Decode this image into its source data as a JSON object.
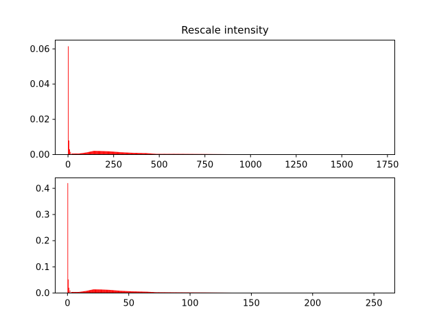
{
  "chart_data": [
    {
      "type": "bar",
      "title": "Rescale intensity",
      "xlabel": "",
      "ylabel": "",
      "xlim": [
        -70,
        1790
      ],
      "ylim": [
        0,
        0.065
      ],
      "xticks": [
        0,
        250,
        500,
        750,
        1000,
        1250,
        1500,
        1750
      ],
      "yticks": [
        0.0,
        0.02,
        0.04,
        0.06
      ],
      "ytick_labels": [
        "0.00",
        "0.02",
        "0.04",
        "0.06"
      ],
      "bar_color": "#ff0000",
      "bin_width": 3.5,
      "spikes": [
        {
          "x": 0,
          "value": 0.0615
        },
        {
          "x": 3.5,
          "value": 0.008
        },
        {
          "x": 7,
          "value": 0.003
        },
        {
          "x": 12,
          "value": 0.0015
        }
      ],
      "profile": [
        {
          "x": 20,
          "value": 0.0006
        },
        {
          "x": 60,
          "value": 0.0006
        },
        {
          "x": 100,
          "value": 0.0012
        },
        {
          "x": 140,
          "value": 0.0021
        },
        {
          "x": 180,
          "value": 0.002
        },
        {
          "x": 230,
          "value": 0.0018
        },
        {
          "x": 290,
          "value": 0.0013
        },
        {
          "x": 350,
          "value": 0.001
        },
        {
          "x": 430,
          "value": 0.0008
        },
        {
          "x": 480,
          "value": 0.0004
        },
        {
          "x": 600,
          "value": 0.0004
        },
        {
          "x": 750,
          "value": 0.0003
        },
        {
          "x": 900,
          "value": 0.0002
        },
        {
          "x": 940,
          "value": 0.0002
        },
        {
          "x": 950,
          "value": 0.0
        }
      ]
    },
    {
      "type": "bar",
      "title": "",
      "xlabel": "",
      "ylabel": "",
      "xlim": [
        -10,
        267
      ],
      "ylim": [
        0,
        0.44
      ],
      "xticks": [
        0,
        50,
        100,
        150,
        200,
        250
      ],
      "yticks": [
        0.0,
        0.1,
        0.2,
        0.3,
        0.4
      ],
      "ytick_labels": [
        "0.0",
        "0.1",
        "0.2",
        "0.3",
        "0.4"
      ],
      "bar_color": "#ff0000",
      "bin_width": 0.5,
      "spikes": [
        {
          "x": 0,
          "value": 0.42
        },
        {
          "x": 0.5,
          "value": 0.052
        },
        {
          "x": 1,
          "value": 0.02
        },
        {
          "x": 1.8,
          "value": 0.01
        }
      ],
      "profile": [
        {
          "x": 3,
          "value": 0.004
        },
        {
          "x": 9,
          "value": 0.004
        },
        {
          "x": 15,
          "value": 0.008
        },
        {
          "x": 21,
          "value": 0.014
        },
        {
          "x": 27,
          "value": 0.0135
        },
        {
          "x": 34,
          "value": 0.012
        },
        {
          "x": 43,
          "value": 0.0085
        },
        {
          "x": 52,
          "value": 0.0065
        },
        {
          "x": 64,
          "value": 0.005
        },
        {
          "x": 72,
          "value": 0.003
        },
        {
          "x": 90,
          "value": 0.0025
        },
        {
          "x": 112,
          "value": 0.002
        },
        {
          "x": 135,
          "value": 0.0013
        },
        {
          "x": 141,
          "value": 0.0013
        },
        {
          "x": 143,
          "value": 0.0
        }
      ]
    }
  ]
}
